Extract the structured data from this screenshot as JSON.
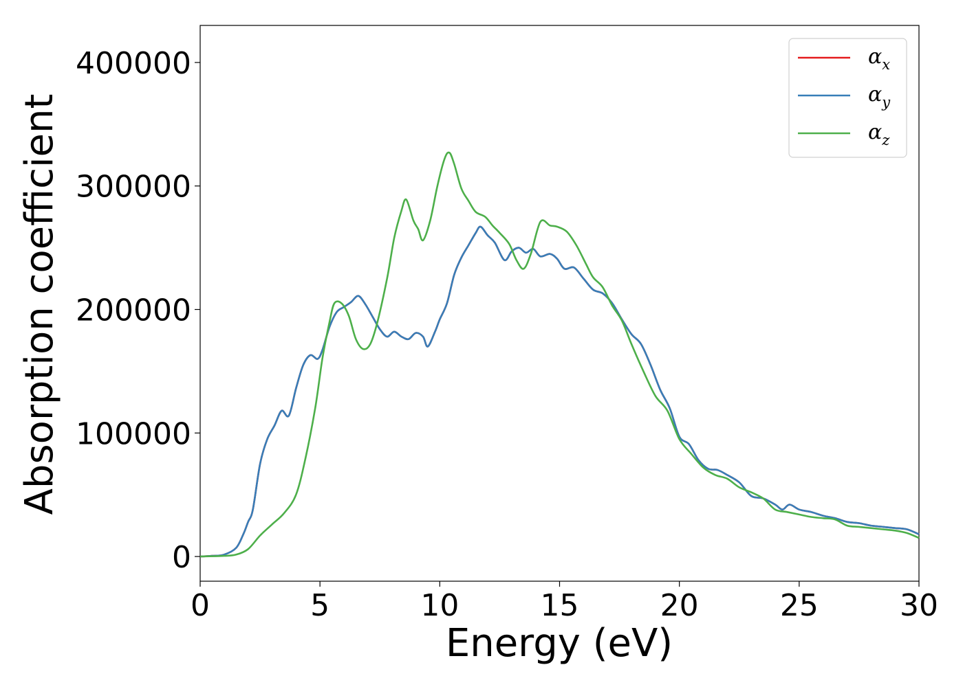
{
  "chart_data": {
    "type": "line",
    "title": "",
    "xlabel": "Energy (eV)",
    "ylabel": "Absorption coefficient",
    "xlim": [
      0,
      30
    ],
    "ylim": [
      -20000,
      430000
    ],
    "xticks": [
      0,
      5,
      10,
      15,
      20,
      25,
      30
    ],
    "yticks": [
      0,
      100000,
      200000,
      300000,
      400000
    ],
    "grid": false,
    "legend_position": "top-right",
    "series": [
      {
        "name": "α",
        "subscript": "x",
        "color": "#e41a1c",
        "points": [
          [
            0,
            0
          ],
          [
            0.5,
            500
          ],
          [
            1,
            1500
          ],
          [
            1.5,
            7000
          ],
          [
            1.8,
            18000
          ],
          [
            2,
            28000
          ],
          [
            2.2,
            38000
          ],
          [
            2.5,
            75000
          ],
          [
            2.8,
            95000
          ],
          [
            3.1,
            106000
          ],
          [
            3.4,
            118000
          ],
          [
            3.7,
            114000
          ],
          [
            4,
            136000
          ],
          [
            4.3,
            155000
          ],
          [
            4.6,
            163000
          ],
          [
            4.9,
            160000
          ],
          [
            5.1,
            167000
          ],
          [
            5.4,
            186000
          ],
          [
            5.7,
            198000
          ],
          [
            6,
            202000
          ],
          [
            6.3,
            206000
          ],
          [
            6.6,
            211000
          ],
          [
            6.9,
            204000
          ],
          [
            7.2,
            194000
          ],
          [
            7.5,
            184000
          ],
          [
            7.8,
            178000
          ],
          [
            8.1,
            182000
          ],
          [
            8.4,
            178000
          ],
          [
            8.7,
            176000
          ],
          [
            9,
            181000
          ],
          [
            9.3,
            178000
          ],
          [
            9.5,
            170000
          ],
          [
            9.8,
            182000
          ],
          [
            10,
            192000
          ],
          [
            10.3,
            205000
          ],
          [
            10.6,
            228000
          ],
          [
            10.9,
            242000
          ],
          [
            11.2,
            252000
          ],
          [
            11.5,
            262000
          ],
          [
            11.7,
            267000
          ],
          [
            12,
            260000
          ],
          [
            12.3,
            254000
          ],
          [
            12.7,
            240000
          ],
          [
            13,
            247000
          ],
          [
            13.3,
            250000
          ],
          [
            13.6,
            246000
          ],
          [
            13.9,
            249000
          ],
          [
            14.2,
            243000
          ],
          [
            14.6,
            245000
          ],
          [
            14.9,
            241000
          ],
          [
            15.2,
            233000
          ],
          [
            15.6,
            234000
          ],
          [
            16,
            225000
          ],
          [
            16.4,
            216000
          ],
          [
            16.8,
            213000
          ],
          [
            17.2,
            205000
          ],
          [
            17.6,
            192000
          ],
          [
            18,
            180000
          ],
          [
            18.4,
            172000
          ],
          [
            18.8,
            155000
          ],
          [
            19.2,
            135000
          ],
          [
            19.6,
            120000
          ],
          [
            20,
            97000
          ],
          [
            20.4,
            91000
          ],
          [
            20.8,
            78000
          ],
          [
            21.2,
            71000
          ],
          [
            21.6,
            70000
          ],
          [
            22,
            66000
          ],
          [
            22.5,
            60000
          ],
          [
            23,
            49000
          ],
          [
            23.5,
            47000
          ],
          [
            24,
            42000
          ],
          [
            24.3,
            38000
          ],
          [
            24.6,
            42000
          ],
          [
            25,
            38000
          ],
          [
            25.5,
            36000
          ],
          [
            26,
            33000
          ],
          [
            26.5,
            31000
          ],
          [
            27,
            28000
          ],
          [
            27.5,
            27000
          ],
          [
            28,
            25000
          ],
          [
            28.5,
            24000
          ],
          [
            29,
            23000
          ],
          [
            29.5,
            22000
          ],
          [
            30,
            18000
          ]
        ]
      },
      {
        "name": "α",
        "subscript": "y",
        "color": "#377eb8",
        "points": [
          [
            0,
            0
          ],
          [
            0.5,
            500
          ],
          [
            1,
            1500
          ],
          [
            1.5,
            7000
          ],
          [
            1.8,
            18000
          ],
          [
            2,
            28000
          ],
          [
            2.2,
            38000
          ],
          [
            2.5,
            75000
          ],
          [
            2.8,
            95000
          ],
          [
            3.1,
            106000
          ],
          [
            3.4,
            118000
          ],
          [
            3.7,
            114000
          ],
          [
            4,
            136000
          ],
          [
            4.3,
            155000
          ],
          [
            4.6,
            163000
          ],
          [
            4.9,
            160000
          ],
          [
            5.1,
            167000
          ],
          [
            5.4,
            186000
          ],
          [
            5.7,
            198000
          ],
          [
            6,
            202000
          ],
          [
            6.3,
            206000
          ],
          [
            6.6,
            211000
          ],
          [
            6.9,
            204000
          ],
          [
            7.2,
            194000
          ],
          [
            7.5,
            184000
          ],
          [
            7.8,
            178000
          ],
          [
            8.1,
            182000
          ],
          [
            8.4,
            178000
          ],
          [
            8.7,
            176000
          ],
          [
            9,
            181000
          ],
          [
            9.3,
            178000
          ],
          [
            9.5,
            170000
          ],
          [
            9.8,
            182000
          ],
          [
            10,
            192000
          ],
          [
            10.3,
            205000
          ],
          [
            10.6,
            228000
          ],
          [
            10.9,
            242000
          ],
          [
            11.2,
            252000
          ],
          [
            11.5,
            262000
          ],
          [
            11.7,
            267000
          ],
          [
            12,
            260000
          ],
          [
            12.3,
            254000
          ],
          [
            12.7,
            240000
          ],
          [
            13,
            247000
          ],
          [
            13.3,
            250000
          ],
          [
            13.6,
            246000
          ],
          [
            13.9,
            249000
          ],
          [
            14.2,
            243000
          ],
          [
            14.6,
            245000
          ],
          [
            14.9,
            241000
          ],
          [
            15.2,
            233000
          ],
          [
            15.6,
            234000
          ],
          [
            16,
            225000
          ],
          [
            16.4,
            216000
          ],
          [
            16.8,
            213000
          ],
          [
            17.2,
            205000
          ],
          [
            17.6,
            192000
          ],
          [
            18,
            180000
          ],
          [
            18.4,
            172000
          ],
          [
            18.8,
            155000
          ],
          [
            19.2,
            135000
          ],
          [
            19.6,
            120000
          ],
          [
            20,
            97000
          ],
          [
            20.4,
            91000
          ],
          [
            20.8,
            78000
          ],
          [
            21.2,
            71000
          ],
          [
            21.6,
            70000
          ],
          [
            22,
            66000
          ],
          [
            22.5,
            60000
          ],
          [
            23,
            49000
          ],
          [
            23.5,
            47000
          ],
          [
            24,
            42000
          ],
          [
            24.3,
            38000
          ],
          [
            24.6,
            42000
          ],
          [
            25,
            38000
          ],
          [
            25.5,
            36000
          ],
          [
            26,
            33000
          ],
          [
            26.5,
            31000
          ],
          [
            27,
            28000
          ],
          [
            27.5,
            27000
          ],
          [
            28,
            25000
          ],
          [
            28.5,
            24000
          ],
          [
            29,
            23000
          ],
          [
            29.5,
            22000
          ],
          [
            30,
            18000
          ]
        ]
      },
      {
        "name": "α",
        "subscript": "z",
        "color": "#4daf4a",
        "points": [
          [
            0,
            0
          ],
          [
            1,
            500
          ],
          [
            1.5,
            1500
          ],
          [
            2,
            6000
          ],
          [
            2.5,
            17000
          ],
          [
            3,
            26000
          ],
          [
            3.5,
            35000
          ],
          [
            4,
            50000
          ],
          [
            4.4,
            80000
          ],
          [
            4.8,
            120000
          ],
          [
            5.1,
            160000
          ],
          [
            5.4,
            190000
          ],
          [
            5.6,
            205000
          ],
          [
            5.9,
            205000
          ],
          [
            6.2,
            195000
          ],
          [
            6.5,
            176000
          ],
          [
            6.8,
            168000
          ],
          [
            7.1,
            172000
          ],
          [
            7.4,
            190000
          ],
          [
            7.8,
            225000
          ],
          [
            8.1,
            258000
          ],
          [
            8.4,
            280000
          ],
          [
            8.6,
            289000
          ],
          [
            8.9,
            272000
          ],
          [
            9.1,
            265000
          ],
          [
            9.3,
            256000
          ],
          [
            9.6,
            272000
          ],
          [
            9.9,
            300000
          ],
          [
            10.2,
            322000
          ],
          [
            10.4,
            327000
          ],
          [
            10.6,
            318000
          ],
          [
            10.9,
            298000
          ],
          [
            11.2,
            288000
          ],
          [
            11.5,
            279000
          ],
          [
            11.9,
            275000
          ],
          [
            12.2,
            268000
          ],
          [
            12.5,
            262000
          ],
          [
            12.9,
            253000
          ],
          [
            13.2,
            240000
          ],
          [
            13.5,
            233000
          ],
          [
            13.8,
            245000
          ],
          [
            14.2,
            271000
          ],
          [
            14.6,
            268000
          ],
          [
            14.9,
            267000
          ],
          [
            15.3,
            263000
          ],
          [
            15.7,
            252000
          ],
          [
            16.1,
            237000
          ],
          [
            16.4,
            226000
          ],
          [
            16.8,
            218000
          ],
          [
            17.2,
            203000
          ],
          [
            17.6,
            191000
          ],
          [
            18,
            172000
          ],
          [
            18.5,
            150000
          ],
          [
            19,
            130000
          ],
          [
            19.5,
            118000
          ],
          [
            20,
            95000
          ],
          [
            20.5,
            83000
          ],
          [
            21,
            72000
          ],
          [
            21.5,
            66000
          ],
          [
            22,
            63000
          ],
          [
            22.5,
            56000
          ],
          [
            23,
            52000
          ],
          [
            23.5,
            47000
          ],
          [
            24,
            38000
          ],
          [
            24.5,
            36000
          ],
          [
            25,
            34000
          ],
          [
            25.5,
            32000
          ],
          [
            26,
            31000
          ],
          [
            26.5,
            30000
          ],
          [
            27,
            25000
          ],
          [
            27.5,
            24000
          ],
          [
            28,
            23000
          ],
          [
            28.5,
            22000
          ],
          [
            29,
            21000
          ],
          [
            29.5,
            19000
          ],
          [
            30,
            15000
          ]
        ]
      }
    ]
  }
}
